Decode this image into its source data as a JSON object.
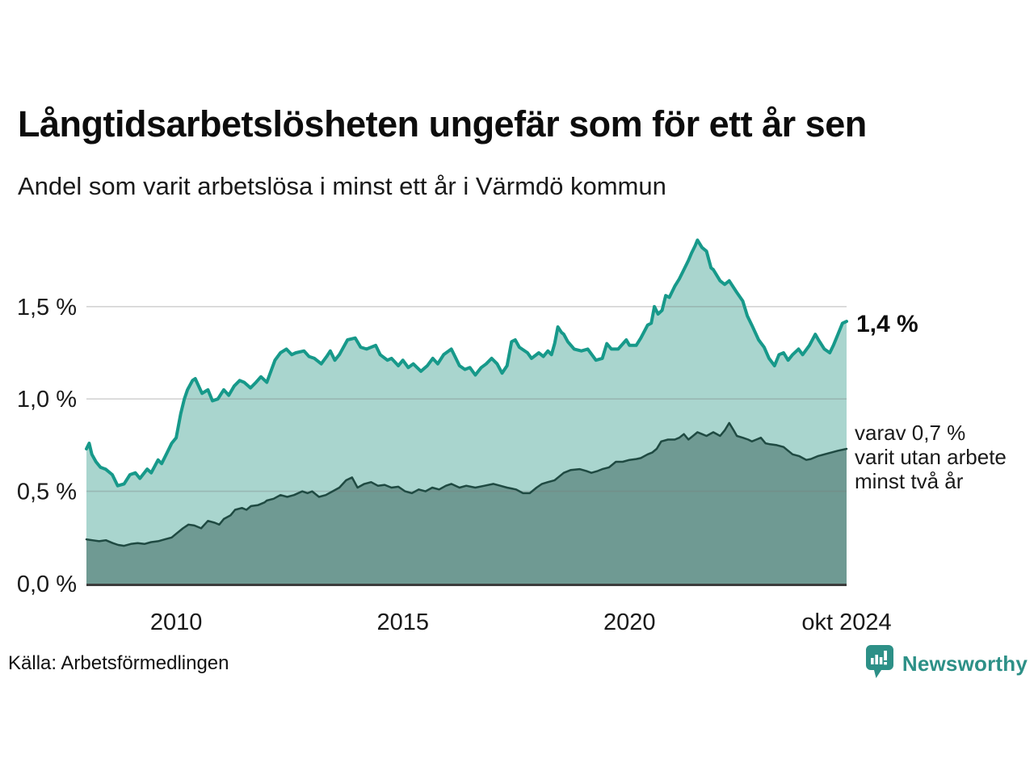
{
  "header": {
    "title": "Långtidsarbetslösheten ungefär som för ett år sen",
    "subtitle": "Andel som varit arbetslösa i minst ett år i Värmdö kommun"
  },
  "annotations": {
    "latest_total": "1,4 %",
    "secondary_line1": "varav 0,7 %",
    "secondary_line2": "varit utan arbete",
    "secondary_line3": "minst två år"
  },
  "footer": {
    "source": "Källa: Arbetsförmedlingen",
    "brand": "Newsworthy"
  },
  "colors": {
    "background": "#ffffff",
    "total_line": "#17998a",
    "total_fill": "#a9d5ce",
    "two_year_line": "#1f4a42",
    "two_year_fill": "#6f9a93",
    "gridline": "#d8d8d8",
    "baseline": "#3c3c3c",
    "text": "#1a1a1a",
    "brand_teal": "#2d9087"
  },
  "chart_data": {
    "type": "area",
    "title": "Långtidsarbetslösheten ungefär som för ett år sen",
    "subtitle": "Andel som varit arbetslösa i minst ett år i Värmdö kommun",
    "x_unit": "decimal_year",
    "xlabel": "",
    "ylabel": "",
    "xlim": [
      2008.02,
      2024.79
    ],
    "ylim": [
      0,
      1.9
    ],
    "grid": "horizontal",
    "legend_position": "none",
    "yticks": [
      {
        "value": 0.0,
        "label": "0,0 %"
      },
      {
        "value": 0.5,
        "label": "0,5 %"
      },
      {
        "value": 1.0,
        "label": "1,0 %"
      },
      {
        "value": 1.5,
        "label": "1,5 %"
      }
    ],
    "xticks": [
      {
        "value": 2010,
        "label": "2010"
      },
      {
        "value": 2015,
        "label": "2015"
      },
      {
        "value": 2020,
        "label": "2020"
      },
      {
        "value": 2024.79,
        "label": "okt 2024"
      }
    ],
    "series": [
      {
        "name": "Andel arbetslösa minst ett år",
        "latest_label": "1,4 %",
        "line_color": "#17998a",
        "fill_color": "#a9d5ce",
        "line_width": 4,
        "points": [
          [
            2008.02,
            0.73
          ],
          [
            2008.08,
            0.76
          ],
          [
            2008.14,
            0.7
          ],
          [
            2008.23,
            0.66
          ],
          [
            2008.33,
            0.63
          ],
          [
            2008.44,
            0.62
          ],
          [
            2008.59,
            0.59
          ],
          [
            2008.71,
            0.53
          ],
          [
            2008.85,
            0.54
          ],
          [
            2008.98,
            0.59
          ],
          [
            2009.1,
            0.6
          ],
          [
            2009.2,
            0.57
          ],
          [
            2009.36,
            0.62
          ],
          [
            2009.45,
            0.6
          ],
          [
            2009.6,
            0.67
          ],
          [
            2009.68,
            0.65
          ],
          [
            2009.8,
            0.71
          ],
          [
            2009.9,
            0.76
          ],
          [
            2010.0,
            0.79
          ],
          [
            2010.1,
            0.92
          ],
          [
            2010.18,
            1.0
          ],
          [
            2010.25,
            1.05
          ],
          [
            2010.36,
            1.1
          ],
          [
            2010.42,
            1.11
          ],
          [
            2010.57,
            1.03
          ],
          [
            2010.7,
            1.05
          ],
          [
            2010.8,
            0.99
          ],
          [
            2010.92,
            1.0
          ],
          [
            2011.05,
            1.05
          ],
          [
            2011.16,
            1.02
          ],
          [
            2011.28,
            1.07
          ],
          [
            2011.4,
            1.1
          ],
          [
            2011.5,
            1.09
          ],
          [
            2011.64,
            1.06
          ],
          [
            2011.76,
            1.09
          ],
          [
            2011.87,
            1.12
          ],
          [
            2012.0,
            1.09
          ],
          [
            2012.18,
            1.21
          ],
          [
            2012.3,
            1.25
          ],
          [
            2012.43,
            1.27
          ],
          [
            2012.55,
            1.24
          ],
          [
            2012.64,
            1.25
          ],
          [
            2012.82,
            1.26
          ],
          [
            2012.93,
            1.23
          ],
          [
            2013.05,
            1.22
          ],
          [
            2013.2,
            1.19
          ],
          [
            2013.32,
            1.23
          ],
          [
            2013.4,
            1.26
          ],
          [
            2013.5,
            1.21
          ],
          [
            2013.6,
            1.24
          ],
          [
            2013.78,
            1.32
          ],
          [
            2013.95,
            1.33
          ],
          [
            2014.07,
            1.28
          ],
          [
            2014.2,
            1.27
          ],
          [
            2014.4,
            1.29
          ],
          [
            2014.5,
            1.24
          ],
          [
            2014.66,
            1.21
          ],
          [
            2014.75,
            1.22
          ],
          [
            2014.9,
            1.18
          ],
          [
            2015.0,
            1.21
          ],
          [
            2015.12,
            1.17
          ],
          [
            2015.23,
            1.19
          ],
          [
            2015.4,
            1.15
          ],
          [
            2015.54,
            1.18
          ],
          [
            2015.66,
            1.22
          ],
          [
            2015.77,
            1.19
          ],
          [
            2015.9,
            1.24
          ],
          [
            2016.07,
            1.27
          ],
          [
            2016.13,
            1.24
          ],
          [
            2016.25,
            1.18
          ],
          [
            2016.37,
            1.16
          ],
          [
            2016.48,
            1.17
          ],
          [
            2016.6,
            1.13
          ],
          [
            2016.73,
            1.17
          ],
          [
            2016.84,
            1.19
          ],
          [
            2016.96,
            1.22
          ],
          [
            2017.08,
            1.19
          ],
          [
            2017.19,
            1.14
          ],
          [
            2017.3,
            1.18
          ],
          [
            2017.4,
            1.31
          ],
          [
            2017.48,
            1.32
          ],
          [
            2017.57,
            1.28
          ],
          [
            2017.75,
            1.25
          ],
          [
            2017.84,
            1.22
          ],
          [
            2018.0,
            1.25
          ],
          [
            2018.1,
            1.23
          ],
          [
            2018.2,
            1.26
          ],
          [
            2018.28,
            1.24
          ],
          [
            2018.35,
            1.3
          ],
          [
            2018.42,
            1.39
          ],
          [
            2018.5,
            1.36
          ],
          [
            2018.55,
            1.35
          ],
          [
            2018.64,
            1.31
          ],
          [
            2018.78,
            1.27
          ],
          [
            2018.94,
            1.26
          ],
          [
            2019.08,
            1.27
          ],
          [
            2019.26,
            1.21
          ],
          [
            2019.4,
            1.22
          ],
          [
            2019.5,
            1.3
          ],
          [
            2019.6,
            1.27
          ],
          [
            2019.75,
            1.27
          ],
          [
            2019.93,
            1.32
          ],
          [
            2020.0,
            1.29
          ],
          [
            2020.15,
            1.29
          ],
          [
            2020.25,
            1.33
          ],
          [
            2020.4,
            1.4
          ],
          [
            2020.48,
            1.41
          ],
          [
            2020.55,
            1.5
          ],
          [
            2020.63,
            1.46
          ],
          [
            2020.72,
            1.48
          ],
          [
            2020.8,
            1.56
          ],
          [
            2020.88,
            1.55
          ],
          [
            2021.0,
            1.61
          ],
          [
            2021.1,
            1.65
          ],
          [
            2021.2,
            1.7
          ],
          [
            2021.3,
            1.75
          ],
          [
            2021.37,
            1.79
          ],
          [
            2021.45,
            1.83
          ],
          [
            2021.5,
            1.86
          ],
          [
            2021.6,
            1.82
          ],
          [
            2021.7,
            1.8
          ],
          [
            2021.8,
            1.71
          ],
          [
            2021.85,
            1.7
          ],
          [
            2022.0,
            1.64
          ],
          [
            2022.1,
            1.62
          ],
          [
            2022.2,
            1.64
          ],
          [
            2022.36,
            1.58
          ],
          [
            2022.5,
            1.53
          ],
          [
            2022.6,
            1.45
          ],
          [
            2022.7,
            1.4
          ],
          [
            2022.85,
            1.32
          ],
          [
            2022.97,
            1.28
          ],
          [
            2023.08,
            1.22
          ],
          [
            2023.2,
            1.18
          ],
          [
            2023.3,
            1.24
          ],
          [
            2023.4,
            1.25
          ],
          [
            2023.5,
            1.21
          ],
          [
            2023.6,
            1.24
          ],
          [
            2023.73,
            1.27
          ],
          [
            2023.82,
            1.24
          ],
          [
            2023.97,
            1.29
          ],
          [
            2024.1,
            1.35
          ],
          [
            2024.17,
            1.32
          ],
          [
            2024.3,
            1.27
          ],
          [
            2024.42,
            1.25
          ],
          [
            2024.5,
            1.29
          ],
          [
            2024.6,
            1.35
          ],
          [
            2024.7,
            1.41
          ],
          [
            2024.79,
            1.42
          ]
        ]
      },
      {
        "name": "varav utan arbete minst två år",
        "latest_label": "0,7 %",
        "line_color": "#1f4a42",
        "fill_color": "#6f9a93",
        "line_width": 2.5,
        "points": [
          [
            2008.02,
            0.24
          ],
          [
            2008.15,
            0.235
          ],
          [
            2008.3,
            0.23
          ],
          [
            2008.45,
            0.235
          ],
          [
            2008.6,
            0.22
          ],
          [
            2008.72,
            0.21
          ],
          [
            2008.85,
            0.205
          ],
          [
            2009.0,
            0.215
          ],
          [
            2009.15,
            0.22
          ],
          [
            2009.3,
            0.215
          ],
          [
            2009.45,
            0.225
          ],
          [
            2009.6,
            0.23
          ],
          [
            2009.75,
            0.24
          ],
          [
            2009.9,
            0.25
          ],
          [
            2010.0,
            0.27
          ],
          [
            2010.15,
            0.3
          ],
          [
            2010.27,
            0.32
          ],
          [
            2010.4,
            0.315
          ],
          [
            2010.55,
            0.3
          ],
          [
            2010.7,
            0.34
          ],
          [
            2010.85,
            0.33
          ],
          [
            2010.95,
            0.32
          ],
          [
            2011.05,
            0.35
          ],
          [
            2011.2,
            0.37
          ],
          [
            2011.3,
            0.4
          ],
          [
            2011.45,
            0.41
          ],
          [
            2011.55,
            0.4
          ],
          [
            2011.65,
            0.42
          ],
          [
            2011.8,
            0.425
          ],
          [
            2011.95,
            0.44
          ],
          [
            2012.0,
            0.45
          ],
          [
            2012.15,
            0.46
          ],
          [
            2012.3,
            0.48
          ],
          [
            2012.45,
            0.47
          ],
          [
            2012.6,
            0.48
          ],
          [
            2012.78,
            0.5
          ],
          [
            2012.9,
            0.49
          ],
          [
            2013.0,
            0.5
          ],
          [
            2013.15,
            0.47
          ],
          [
            2013.3,
            0.48
          ],
          [
            2013.45,
            0.5
          ],
          [
            2013.6,
            0.52
          ],
          [
            2013.75,
            0.56
          ],
          [
            2013.88,
            0.575
          ],
          [
            2014.0,
            0.52
          ],
          [
            2014.15,
            0.54
          ],
          [
            2014.3,
            0.55
          ],
          [
            2014.45,
            0.53
          ],
          [
            2014.6,
            0.535
          ],
          [
            2014.75,
            0.52
          ],
          [
            2014.9,
            0.525
          ],
          [
            2015.05,
            0.5
          ],
          [
            2015.2,
            0.49
          ],
          [
            2015.35,
            0.51
          ],
          [
            2015.5,
            0.5
          ],
          [
            2015.65,
            0.52
          ],
          [
            2015.8,
            0.51
          ],
          [
            2015.95,
            0.53
          ],
          [
            2016.07,
            0.54
          ],
          [
            2016.25,
            0.52
          ],
          [
            2016.4,
            0.53
          ],
          [
            2016.6,
            0.52
          ],
          [
            2016.8,
            0.53
          ],
          [
            2017.0,
            0.54
          ],
          [
            2017.15,
            0.53
          ],
          [
            2017.3,
            0.52
          ],
          [
            2017.5,
            0.51
          ],
          [
            2017.65,
            0.49
          ],
          [
            2017.8,
            0.49
          ],
          [
            2017.95,
            0.52
          ],
          [
            2018.07,
            0.54
          ],
          [
            2018.2,
            0.55
          ],
          [
            2018.35,
            0.56
          ],
          [
            2018.45,
            0.58
          ],
          [
            2018.55,
            0.6
          ],
          [
            2018.7,
            0.615
          ],
          [
            2018.9,
            0.62
          ],
          [
            2019.05,
            0.61
          ],
          [
            2019.16,
            0.6
          ],
          [
            2019.3,
            0.61
          ],
          [
            2019.4,
            0.62
          ],
          [
            2019.55,
            0.63
          ],
          [
            2019.7,
            0.66
          ],
          [
            2019.85,
            0.66
          ],
          [
            2020.0,
            0.67
          ],
          [
            2020.15,
            0.675
          ],
          [
            2020.25,
            0.68
          ],
          [
            2020.4,
            0.7
          ],
          [
            2020.5,
            0.71
          ],
          [
            2020.6,
            0.73
          ],
          [
            2020.7,
            0.77
          ],
          [
            2020.85,
            0.78
          ],
          [
            2021.0,
            0.78
          ],
          [
            2021.1,
            0.79
          ],
          [
            2021.2,
            0.81
          ],
          [
            2021.3,
            0.78
          ],
          [
            2021.4,
            0.8
          ],
          [
            2021.5,
            0.82
          ],
          [
            2021.6,
            0.81
          ],
          [
            2021.7,
            0.8
          ],
          [
            2021.85,
            0.82
          ],
          [
            2022.0,
            0.8
          ],
          [
            2022.1,
            0.83
          ],
          [
            2022.2,
            0.87
          ],
          [
            2022.3,
            0.83
          ],
          [
            2022.37,
            0.8
          ],
          [
            2022.5,
            0.79
          ],
          [
            2022.62,
            0.78
          ],
          [
            2022.7,
            0.77
          ],
          [
            2022.8,
            0.78
          ],
          [
            2022.9,
            0.79
          ],
          [
            2023.0,
            0.76
          ],
          [
            2023.1,
            0.755
          ],
          [
            2023.25,
            0.75
          ],
          [
            2023.4,
            0.74
          ],
          [
            2023.5,
            0.72
          ],
          [
            2023.6,
            0.7
          ],
          [
            2023.75,
            0.69
          ],
          [
            2023.9,
            0.67
          ],
          [
            2024.0,
            0.675
          ],
          [
            2024.15,
            0.69
          ],
          [
            2024.3,
            0.7
          ],
          [
            2024.45,
            0.71
          ],
          [
            2024.6,
            0.72
          ],
          [
            2024.79,
            0.73
          ]
        ]
      }
    ]
  }
}
